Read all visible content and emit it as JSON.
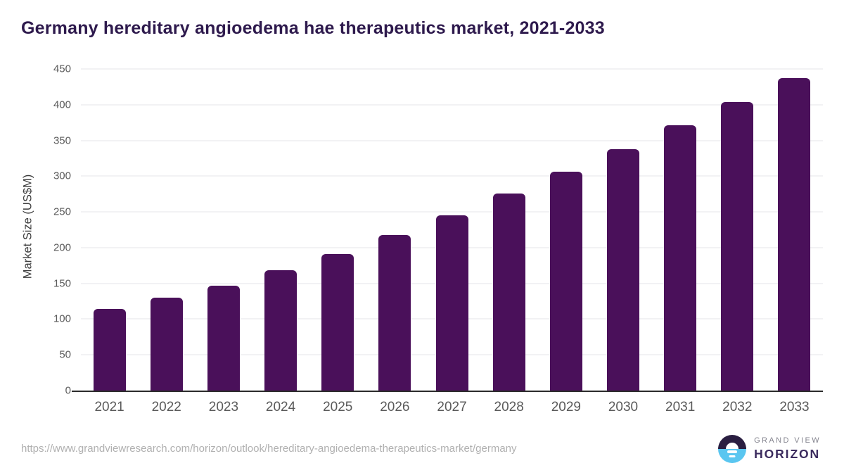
{
  "chart_data": {
    "type": "bar",
    "title": "Germany hereditary angioedema hae therapeutics market, 2021-2033",
    "ylabel": "Market Size (US$M)",
    "xlabel": "",
    "categories": [
      "2021",
      "2022",
      "2023",
      "2024",
      "2025",
      "2026",
      "2027",
      "2028",
      "2029",
      "2030",
      "2031",
      "2032",
      "2033"
    ],
    "values": [
      114,
      130,
      147,
      168,
      191,
      218,
      245,
      276,
      306,
      338,
      371,
      404,
      437
    ],
    "ylim": [
      0,
      450
    ],
    "yticks": [
      0,
      50,
      100,
      150,
      200,
      250,
      300,
      350,
      400,
      450
    ],
    "grid": true,
    "legend": false,
    "bar_color": "#4a105a",
    "title_color": "#2e1a4d",
    "axis_line_color": "#2b2b2b",
    "gridline_color": "#e6e6e8",
    "tick_label_color": "#5a5a5a"
  },
  "footer": {
    "source_url": "https://www.grandviewresearch.com/horizon/outlook/hereditary-angioedema-therapeutics-market/germany",
    "logo": {
      "icon": "sunrise-horizon-icon",
      "top_text": "GRAND VIEW",
      "bottom_text": "HORIZON",
      "circle_top_color": "#2a1e41",
      "circle_bottom_color": "#5ac6f0",
      "horizon_text_color": "#3b2b5e"
    }
  }
}
